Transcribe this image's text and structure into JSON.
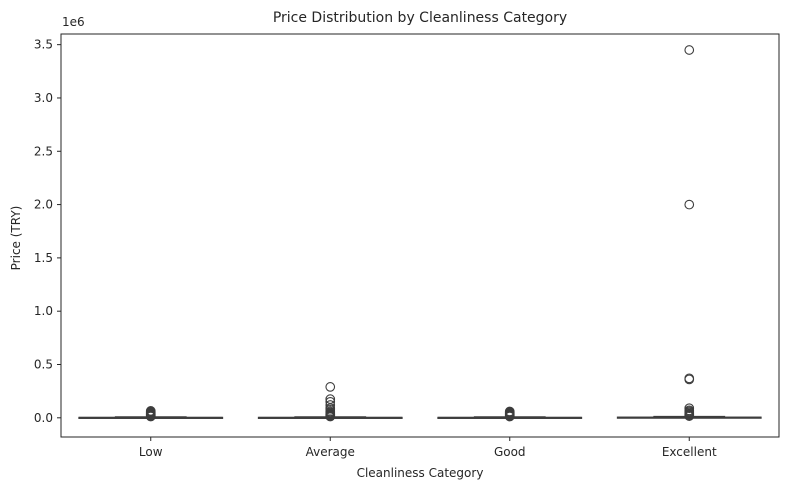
{
  "chart_data": {
    "type": "box",
    "title": "Price Distribution by Cleanliness Category",
    "xlabel": "Cleanliness Category",
    "ylabel": "Price (TRY)",
    "y_offset_label": "1e6",
    "ylim": [
      -0.18,
      3.6
    ],
    "y_unit_multiplier": 1000000,
    "yticks": [
      0.0,
      0.5,
      1.0,
      1.5,
      2.0,
      2.5,
      3.0,
      3.5
    ],
    "ytick_labels": [
      "0.0",
      "0.5",
      "1.0",
      "1.5",
      "2.0",
      "2.5",
      "3.0",
      "3.5"
    ],
    "categories": [
      "Low",
      "Average",
      "Good",
      "Excellent"
    ],
    "box_color": "#1f77b4",
    "outlier_color": "#3d3d3d",
    "boxes": [
      {
        "category": "Low",
        "whisker_low": 0.0,
        "q1": 0.001,
        "median": 0.002,
        "q3": 0.004,
        "whisker_high": 0.009,
        "outliers": [
          0.012,
          0.016,
          0.02,
          0.024,
          0.028,
          0.032,
          0.036,
          0.04,
          0.045,
          0.05,
          0.055,
          0.06,
          0.065
        ]
      },
      {
        "category": "Average",
        "whisker_low": 0.0,
        "q1": 0.001,
        "median": 0.002,
        "q3": 0.004,
        "whisker_high": 0.009,
        "outliers": [
          0.012,
          0.016,
          0.02,
          0.025,
          0.03,
          0.035,
          0.04,
          0.05,
          0.06,
          0.075,
          0.09,
          0.12,
          0.15,
          0.175,
          0.29
        ]
      },
      {
        "category": "Good",
        "whisker_low": 0.0,
        "q1": 0.001,
        "median": 0.002,
        "q3": 0.004,
        "whisker_high": 0.009,
        "outliers": [
          0.012,
          0.016,
          0.02,
          0.024,
          0.028,
          0.032,
          0.036,
          0.04,
          0.045,
          0.05,
          0.055,
          0.06
        ]
      },
      {
        "category": "Excellent",
        "whisker_low": 0.0,
        "q1": 0.001,
        "median": 0.003,
        "q3": 0.006,
        "whisker_high": 0.012,
        "outliers": [
          0.016,
          0.02,
          0.025,
          0.03,
          0.035,
          0.04,
          0.05,
          0.06,
          0.07,
          0.09,
          0.36,
          0.37,
          2.0,
          3.45
        ]
      }
    ],
    "grid": false,
    "legend": "none"
  }
}
